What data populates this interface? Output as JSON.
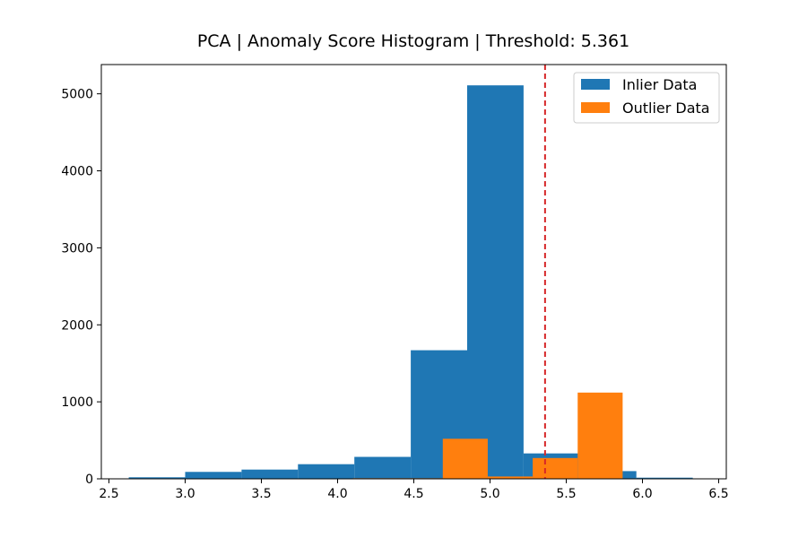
{
  "chart_data": {
    "type": "bar",
    "title": "PCA | Anomaly Score Histogram | Threshold: 5.361",
    "xlabel": "",
    "ylabel": "",
    "xlim": [
      2.45,
      6.55
    ],
    "ylim": [
      0,
      5380
    ],
    "xticks": [
      2.5,
      3.0,
      3.5,
      4.0,
      4.5,
      5.0,
      5.5,
      6.0,
      6.5
    ],
    "xtick_labels": [
      "2.5",
      "3.0",
      "3.5",
      "4.0",
      "4.5",
      "5.0",
      "5.5",
      "6.0",
      "6.5"
    ],
    "yticks": [
      0,
      1000,
      2000,
      3000,
      4000,
      5000
    ],
    "ytick_labels": [
      "0",
      "1000",
      "2000",
      "3000",
      "4000",
      "5000"
    ],
    "threshold": 5.361,
    "grid": false,
    "legend_position": "top-right",
    "series": [
      {
        "name": "Inlier Data",
        "color": "#1f77b4",
        "bins": [
          {
            "x0": 2.63,
            "x1": 3.0,
            "value": 20
          },
          {
            "x0": 3.0,
            "x1": 3.37,
            "value": 90
          },
          {
            "x0": 3.37,
            "x1": 3.74,
            "value": 120
          },
          {
            "x0": 3.74,
            "x1": 4.11,
            "value": 190
          },
          {
            "x0": 4.11,
            "x1": 4.48,
            "value": 285
          },
          {
            "x0": 4.48,
            "x1": 4.85,
            "value": 1670
          },
          {
            "x0": 4.85,
            "x1": 5.22,
            "value": 5110
          },
          {
            "x0": 5.22,
            "x1": 5.59,
            "value": 330
          },
          {
            "x0": 5.59,
            "x1": 5.96,
            "value": 100
          },
          {
            "x0": 5.96,
            "x1": 6.33,
            "value": 15
          }
        ]
      },
      {
        "name": "Outlier Data",
        "color": "#ff7f0e",
        "bins": [
          {
            "x0": 4.1,
            "x1": 4.395,
            "value": 8
          },
          {
            "x0": 4.395,
            "x1": 4.69,
            "value": 8
          },
          {
            "x0": 4.69,
            "x1": 4.985,
            "value": 520
          },
          {
            "x0": 4.985,
            "x1": 5.28,
            "value": 30
          },
          {
            "x0": 5.28,
            "x1": 5.575,
            "value": 270
          },
          {
            "x0": 5.575,
            "x1": 5.87,
            "value": 1120
          }
        ]
      }
    ],
    "threshold_color": "#d62728"
  }
}
